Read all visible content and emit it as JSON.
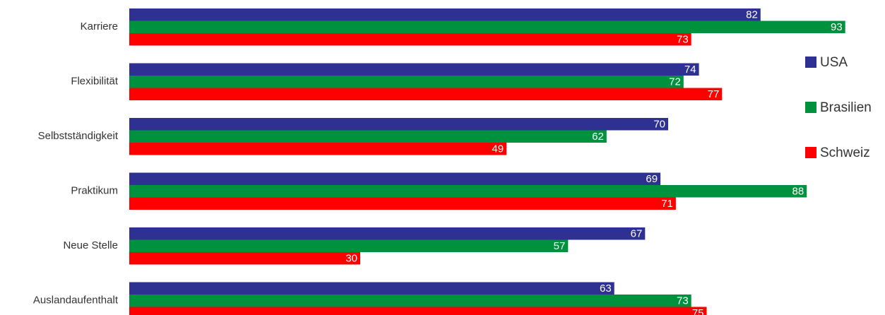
{
  "chart_data": {
    "type": "bar",
    "orientation": "horizontal",
    "categories": [
      "Karriere",
      "Flexibilität",
      "Selbstständigkeit",
      "Praktikum",
      "Neue Stelle",
      "Auslandaufenthalt"
    ],
    "series": [
      {
        "name": "USA",
        "color": "#2e3192",
        "values": [
          82,
          74,
          70,
          69,
          67,
          63
        ]
      },
      {
        "name": "Brasilien",
        "color": "#00913f",
        "values": [
          93,
          72,
          62,
          88,
          57,
          73
        ]
      },
      {
        "name": "Schweiz",
        "color": "#ff0000",
        "values": [
          73,
          77,
          49,
          71,
          30,
          75
        ]
      }
    ],
    "xlim": [
      0,
      100
    ],
    "grid": false,
    "legend_position": "right",
    "data_labels": true
  }
}
